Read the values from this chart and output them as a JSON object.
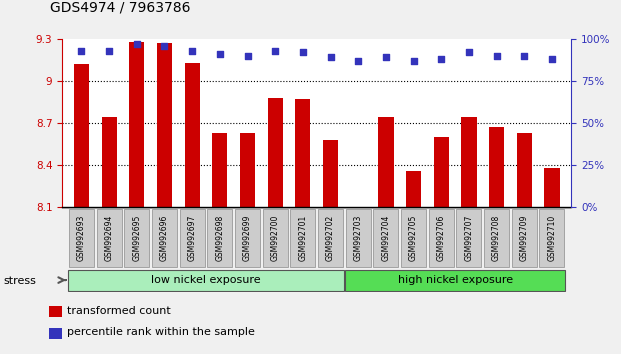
{
  "title": "GDS4974 / 7963786",
  "samples": [
    "GSM992693",
    "GSM992694",
    "GSM992695",
    "GSM992696",
    "GSM992697",
    "GSM992698",
    "GSM992699",
    "GSM992700",
    "GSM992701",
    "GSM992702",
    "GSM992703",
    "GSM992704",
    "GSM992705",
    "GSM992706",
    "GSM992707",
    "GSM992708",
    "GSM992709",
    "GSM992710"
  ],
  "bar_values": [
    9.12,
    8.74,
    9.28,
    9.27,
    9.13,
    8.63,
    8.63,
    8.88,
    8.87,
    8.58,
    8.1,
    8.74,
    8.36,
    8.6,
    8.74,
    8.67,
    8.63,
    8.38
  ],
  "percentile_values": [
    93,
    93,
    97,
    96,
    93,
    91,
    90,
    93,
    92,
    89,
    87,
    89,
    87,
    88,
    92,
    90,
    90,
    88
  ],
  "bar_color": "#cc0000",
  "dot_color": "#3333bb",
  "ylim_left": [
    8.1,
    9.3
  ],
  "ylim_right": [
    0,
    100
  ],
  "yticks_left": [
    8.1,
    8.4,
    8.7,
    9.0,
    9.3
  ],
  "ytick_labels_left": [
    "8.1",
    "8.4",
    "8.7",
    "9",
    "9.3"
  ],
  "yticks_right": [
    0,
    25,
    50,
    75,
    100
  ],
  "ytick_labels_right": [
    "0%",
    "25%",
    "50%",
    "75%",
    "100%"
  ],
  "grid_values": [
    9.0,
    8.7,
    8.4
  ],
  "low_nickel_indices": [
    0,
    9
  ],
  "high_nickel_indices": [
    10,
    17
  ],
  "low_label": "low nickel exposure",
  "high_label": "high nickel exposure",
  "group_low_color": "#aaeebb",
  "group_high_color": "#55dd55",
  "stress_label": "stress",
  "legend_bar_label": "transformed count",
  "legend_dot_label": "percentile rank within the sample",
  "fig_bg_color": "#f0f0f0",
  "plot_bg_color": "#ffffff",
  "tick_box_color": "#cccccc",
  "tick_box_edge": "#999999"
}
